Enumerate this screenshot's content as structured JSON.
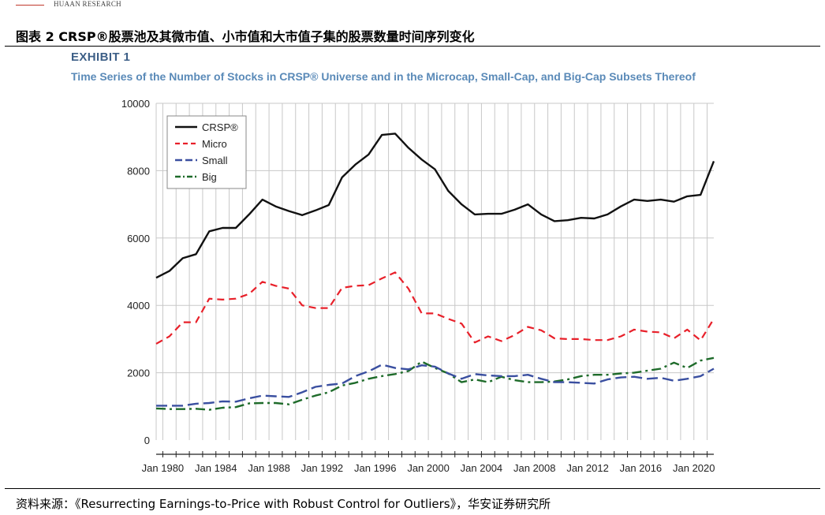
{
  "header": {
    "brand": "HUAAN RESEARCH"
  },
  "figure_title": "图表 2 CRSP®股票池及其微市值、小市值和大市值子集的股票数量时间序列变化",
  "exhibit_label": "EXHIBIT 1",
  "subtitle": "Time Series of the Number of Stocks in CRSP® Universe and in the Microcap, Small-Cap, and Big-Cap Subsets Thereof",
  "source": "资料来源：《Resurrecting Earnings-to-Price with Robust Control for Outliers》，华安证券研究所",
  "colors": {
    "crsp": "#111111",
    "micro": "#e8202a",
    "small": "#3a4fa0",
    "big": "#1e6b2a",
    "grid": "#c8c8c8",
    "title_blue": "#5a8ab8",
    "exhibit_blue": "#3d5f87"
  },
  "chart_data": {
    "type": "line",
    "x": [
      1979.5,
      1980.5,
      1981.5,
      1982.5,
      1983.5,
      1984.5,
      1985.5,
      1986.5,
      1987.5,
      1988.5,
      1989.5,
      1990.5,
      1991.5,
      1992.5,
      1993.5,
      1994.5,
      1995.5,
      1996.5,
      1997.5,
      1998.5,
      1999.5,
      2000.5,
      2001.5,
      2002.5,
      2003.5,
      2004.5,
      2005.5,
      2006.5,
      2007.5,
      2008.5,
      2009.5,
      2010.5,
      2011.5,
      2012.5,
      2013.5,
      2014.5,
      2015.5,
      2016.5,
      2017.5,
      2018.5,
      2019.5,
      2020.5,
      2021.5
    ],
    "series": [
      {
        "name": "CRSP®",
        "style": "solid",
        "values": [
          4820,
          5020,
          5400,
          5520,
          6200,
          6300,
          6300,
          6700,
          7140,
          6940,
          6800,
          6680,
          6820,
          6980,
          7800,
          8180,
          8480,
          9060,
          9100,
          8680,
          8330,
          8040,
          7400,
          7000,
          6700,
          6720,
          6720,
          6840,
          7000,
          6700,
          6500,
          6530,
          6600,
          6580,
          6700,
          6940,
          7140,
          7100,
          7140,
          7080,
          7240,
          7280,
          8280
        ]
      },
      {
        "name": "Micro",
        "style": "dashed",
        "values": [
          2860,
          3080,
          3500,
          3500,
          4200,
          4170,
          4200,
          4340,
          4700,
          4580,
          4500,
          4000,
          3920,
          3920,
          4520,
          4580,
          4600,
          4800,
          4980,
          4500,
          3760,
          3760,
          3600,
          3460,
          2900,
          3080,
          2940,
          3120,
          3360,
          3260,
          3020,
          3000,
          3000,
          2970,
          2970,
          3080,
          3280,
          3220,
          3200,
          3020,
          3280,
          2960,
          3600
        ]
      },
      {
        "name": "Small",
        "style": "longdash",
        "values": [
          1020,
          1020,
          1020,
          1080,
          1100,
          1150,
          1140,
          1240,
          1320,
          1300,
          1280,
          1420,
          1580,
          1640,
          1680,
          1900,
          2040,
          2240,
          2140,
          2100,
          2220,
          2180,
          1980,
          1820,
          1960,
          1920,
          1900,
          1900,
          1940,
          1820,
          1720,
          1720,
          1700,
          1680,
          1800,
          1860,
          1880,
          1820,
          1850,
          1760,
          1820,
          1900,
          2120
        ]
      },
      {
        "name": "Big",
        "style": "dashdot",
        "values": [
          940,
          920,
          920,
          930,
          900,
          960,
          980,
          1090,
          1100,
          1100,
          1060,
          1200,
          1320,
          1420,
          1620,
          1700,
          1820,
          1900,
          1960,
          2050,
          2330,
          2140,
          1980,
          1720,
          1800,
          1720,
          1880,
          1780,
          1720,
          1720,
          1740,
          1800,
          1900,
          1940,
          1940,
          1980,
          2000,
          2060,
          2120,
          2300,
          2140,
          2360,
          2440
        ]
      }
    ],
    "xlabel": "",
    "ylabel": "",
    "ylim": [
      0,
      10000
    ],
    "xlim": [
      1979.5,
      2021.5
    ],
    "yticks": [
      0,
      2000,
      4000,
      6000,
      8000,
      10000
    ],
    "xtick_labels": [
      "Jan 1980",
      "Jan 1984",
      "Jan 1988",
      "Jan 1992",
      "Jan 1996",
      "Jan 2000",
      "Jan 2004",
      "Jan 2008",
      "Jan 2012",
      "Jan 2016",
      "Jan 2020"
    ],
    "xtick_values": [
      1980,
      1984,
      1988,
      1992,
      1996,
      2000,
      2004,
      2008,
      2012,
      2016,
      2020
    ],
    "grid": true,
    "legend_position": "top-left"
  }
}
